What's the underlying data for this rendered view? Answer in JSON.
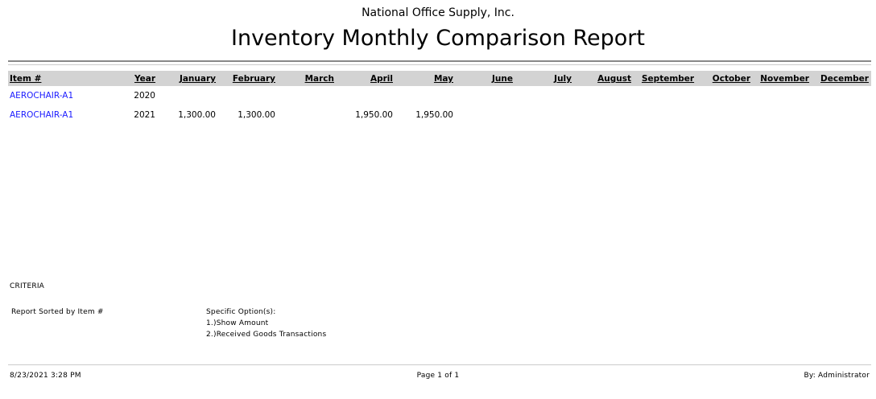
{
  "header": {
    "company": "National Office Supply, Inc.",
    "title": "Inventory Monthly Comparison Report"
  },
  "table": {
    "columns": [
      "Item #",
      "Year",
      "January",
      "February",
      "March",
      "April",
      "May",
      "June",
      "July",
      "August",
      "September",
      "October",
      "November",
      "December"
    ],
    "rows": [
      {
        "item": "AEROCHAIR-A1",
        "year": "2020",
        "values": [
          "",
          "",
          "",
          "",
          "",
          "",
          "",
          "",
          "",
          "",
          "",
          ""
        ]
      },
      {
        "item": "AEROCHAIR-A1",
        "year": "2021",
        "values": [
          "1,300.00",
          "1,300.00",
          "",
          "1,950.00",
          "1,950.00",
          "",
          "",
          "",
          "",
          "",
          "",
          ""
        ]
      }
    ]
  },
  "criteria": {
    "heading": "CRITERIA",
    "sort": "Report Sorted by Item #",
    "options_heading": "Specific Option(s):",
    "options": [
      "1.)Show Amount",
      "2.)Received Goods Transactions"
    ]
  },
  "footer": {
    "datetime": "8/23/2021 3:28 PM",
    "page": "Page 1 of 1",
    "by": "By: Administrator"
  }
}
